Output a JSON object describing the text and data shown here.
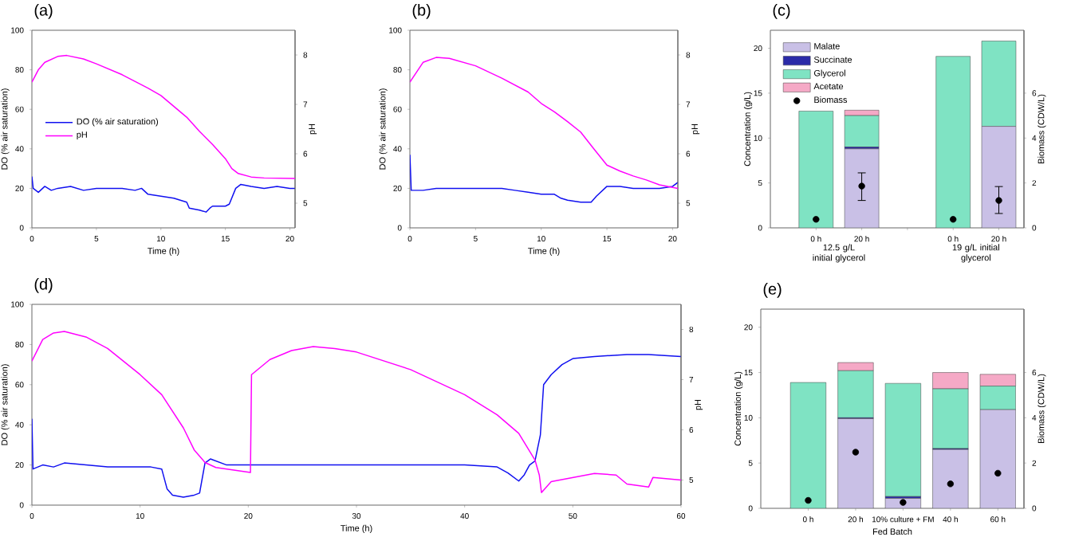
{
  "chart_data": [
    {
      "type": "line",
      "title": "(a)",
      "xlabel": "Time (h)",
      "ylabel": "DO (% air saturation)",
      "y2label": "pH",
      "xlim": [
        0,
        20.4
      ],
      "xticks": [
        0,
        5,
        10,
        15,
        20
      ],
      "ylim": [
        0,
        100
      ],
      "yticks": [
        0,
        20,
        40,
        60,
        80,
        100
      ],
      "y2lim": [
        4.5,
        8.5
      ],
      "y2ticks": [
        5,
        6,
        7,
        8
      ],
      "legend": "left",
      "series": [
        {
          "name": "DO (% air saturation)",
          "color": "#1010f0",
          "x": [
            0,
            0.1,
            0.5,
            1,
            1.5,
            2,
            3,
            4,
            5,
            6,
            7,
            8,
            8.5,
            9,
            10,
            11,
            12,
            12.2,
            13,
            13.5,
            13.8,
            14,
            15,
            15.3,
            15.8,
            16.2,
            17,
            18,
            19,
            20,
            20.4
          ],
          "values": [
            26,
            20,
            18,
            21,
            19,
            20,
            21,
            19,
            20,
            20,
            20,
            19,
            20,
            17,
            16,
            15,
            13,
            10,
            9,
            8,
            10,
            11,
            11,
            12,
            20,
            22,
            21,
            20,
            21,
            20,
            20
          ]
        },
        {
          "name": "pH",
          "color": "#ff00ff",
          "axis": "y2",
          "x": [
            0,
            0.5,
            1,
            2,
            2.7,
            4,
            5,
            7,
            9,
            10,
            12,
            13,
            14,
            15,
            15.5,
            16,
            17,
            18,
            20.4
          ],
          "values": [
            7.45,
            7.7,
            7.85,
            7.97,
            7.99,
            7.92,
            7.82,
            7.6,
            7.33,
            7.18,
            6.74,
            6.45,
            6.19,
            5.9,
            5.7,
            5.6,
            5.53,
            5.51,
            5.5
          ]
        }
      ]
    },
    {
      "type": "line",
      "title": "(b)",
      "xlabel": "Time (h)",
      "ylabel": "DO (% air saturation)",
      "y2label": "pH",
      "xlim": [
        0,
        20.4
      ],
      "xticks": [
        0,
        5,
        10,
        15,
        20
      ],
      "ylim": [
        0,
        100
      ],
      "yticks": [
        0,
        20,
        40,
        60,
        80,
        100
      ],
      "y2lim": [
        4.5,
        8.5
      ],
      "y2ticks": [
        5,
        6,
        7,
        8
      ],
      "series": [
        {
          "color": "#1010f0",
          "x": [
            0,
            0.1,
            1,
            2,
            3,
            4,
            5,
            6,
            7,
            8,
            9,
            10,
            11,
            11.5,
            12,
            13,
            13.8,
            14.2,
            15,
            16,
            17,
            18,
            19,
            20,
            20.4
          ],
          "values": [
            37,
            19,
            19,
            20,
            20,
            20,
            20,
            20,
            20,
            19,
            18,
            17,
            17,
            15,
            14,
            13,
            13,
            16,
            21,
            21,
            20,
            20,
            20,
            21,
            23
          ]
        },
        {
          "color": "#ff00ff",
          "axis": "y2",
          "x": [
            0,
            1,
            2,
            3,
            5,
            7,
            9,
            10,
            11,
            12,
            13,
            14,
            15,
            16,
            17,
            18,
            19,
            20.4
          ],
          "values": [
            7.45,
            7.85,
            7.95,
            7.93,
            7.78,
            7.53,
            7.25,
            7.02,
            6.85,
            6.65,
            6.44,
            6.1,
            5.77,
            5.65,
            5.55,
            5.47,
            5.37,
            5.3
          ]
        }
      ]
    },
    {
      "type": "bar",
      "stacked": true,
      "title": "(c)",
      "ylabel": "Concentration (g/L)",
      "y2label": "Biomass (CDW/L)",
      "categories": [
        "0 h",
        "20 h",
        null,
        "0 h",
        "20 h"
      ],
      "ylim": [
        0,
        22
      ],
      "yticks": [
        0,
        5,
        10,
        15,
        20
      ],
      "y2lim": [
        0,
        8.8
      ],
      "y2ticks": [
        0,
        2,
        4,
        6
      ],
      "legend": "top left",
      "annotations": [
        "12.5 g/L initial glycerol",
        "19 g/L initial glycerol"
      ],
      "series": [
        {
          "name": "Malate",
          "color": "#c9c0e6",
          "values": [
            0,
            8.8,
            null,
            0,
            11.3
          ]
        },
        {
          "name": "Succinate",
          "color": "#2b2ba8",
          "values": [
            0,
            0.2,
            null,
            0,
            0
          ]
        },
        {
          "name": "Glycerol",
          "color": "#7fe3c3",
          "values": [
            13.0,
            3.5,
            null,
            19.1,
            9.5
          ]
        },
        {
          "name": "Acetate",
          "color": "#f5a9c6",
          "values": [
            0,
            0.6,
            null,
            0,
            0
          ]
        },
        {
          "name": "Biomass",
          "type": "scatter",
          "axis": "y2",
          "marker": "circle",
          "color": "#000000",
          "values": [
            0.38,
            1.86,
            null,
            0.38,
            1.22
          ],
          "errors": [
            null,
            [
              1.22,
              2.45
            ],
            null,
            null,
            [
              0.64,
              1.84
            ]
          ]
        }
      ]
    },
    {
      "type": "line",
      "title": "(d)",
      "xlabel": "Time (h)",
      "ylabel": "DO (% air saturation)",
      "y2label": "pH",
      "xlim": [
        0,
        60
      ],
      "xticks": [
        0,
        10,
        20,
        30,
        40,
        50,
        60
      ],
      "ylim": [
        0,
        100
      ],
      "yticks": [
        0,
        20,
        40,
        60,
        80,
        100
      ],
      "y2lim": [
        4.5,
        8.5
      ],
      "y2ticks": [
        5,
        6,
        7,
        8
      ],
      "series": [
        {
          "color": "#1010f0",
          "x": [
            0,
            0.1,
            1,
            2,
            3,
            5,
            7,
            9,
            11,
            12,
            12.5,
            13,
            14,
            15,
            15.5,
            16,
            16.5,
            18,
            20,
            22,
            25,
            30,
            35,
            40,
            43,
            44,
            45,
            45.5,
            46,
            46.5,
            47,
            47.3,
            48,
            49,
            50,
            52,
            55,
            57,
            60
          ],
          "values": [
            43,
            18,
            20,
            19,
            21,
            20,
            19,
            19,
            19,
            18,
            8,
            5,
            4,
            5,
            6,
            21,
            23,
            20,
            20,
            20,
            20,
            20,
            20,
            20,
            19,
            16,
            12,
            15,
            20,
            22,
            35,
            60,
            65,
            70,
            73,
            74,
            75,
            75,
            74
          ]
        },
        {
          "color": "#ff00ff",
          "axis": "y2",
          "x": [
            0,
            1,
            2,
            3,
            5,
            7,
            10,
            12,
            14,
            15,
            16,
            17,
            20.2,
            20.3,
            22,
            24,
            26,
            28,
            30,
            35,
            40,
            43,
            45,
            46.5,
            46.9,
            47.1,
            48,
            50,
            52,
            54,
            55,
            57,
            57.4,
            60
          ],
          "values": [
            7.37,
            7.8,
            7.93,
            7.96,
            7.85,
            7.62,
            7.1,
            6.7,
            6.04,
            5.6,
            5.35,
            5.25,
            5.15,
            7.1,
            7.4,
            7.58,
            7.66,
            7.62,
            7.55,
            7.2,
            6.7,
            6.3,
            5.93,
            5.4,
            5.1,
            4.75,
            4.97,
            5.05,
            5.13,
            5.1,
            4.92,
            4.86,
            5.05,
            5.0
          ]
        }
      ]
    },
    {
      "type": "bar",
      "stacked": true,
      "title": "(e)",
      "xlabel": "Fed Batch",
      "ylabel": "Concentration (g/L)",
      "y2label": "Biomass (CDW/L)",
      "categories": [
        "0 h",
        "20 h",
        "10% culture + FM",
        "40 h",
        "60 h"
      ],
      "ylim": [
        0,
        22
      ],
      "yticks": [
        0,
        5,
        10,
        15,
        20
      ],
      "y2lim": [
        0,
        8.8
      ],
      "y2ticks": [
        0,
        2,
        4,
        6
      ],
      "series": [
        {
          "color": "#c9c0e6",
          "values": [
            0,
            9.9,
            1.1,
            6.5,
            10.9
          ]
        },
        {
          "color": "#2b2ba8",
          "values": [
            0,
            0.1,
            0.2,
            0.1,
            0
          ]
        },
        {
          "color": "#7fe3c3",
          "values": [
            13.9,
            5.2,
            12.5,
            6.6,
            2.6
          ]
        },
        {
          "color": "#f5a9c6",
          "values": [
            0,
            0.9,
            0,
            1.8,
            1.3
          ]
        },
        {
          "type": "scatter",
          "axis": "y2",
          "marker": "circle",
          "color": "#000000",
          "values": [
            0.35,
            2.48,
            0.26,
            1.08,
            1.55
          ]
        }
      ]
    }
  ]
}
